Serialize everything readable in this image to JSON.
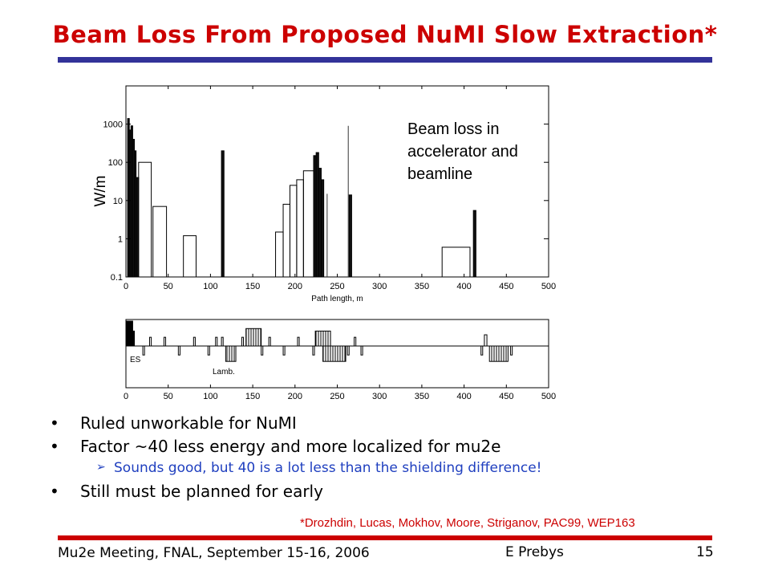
{
  "slide": {
    "title": "Beam Loss From Proposed NuMI Slow Extraction*",
    "citation": "*Drozhdin, Lucas, Mokhov, Moore, Striganov, PAC99, WEP163",
    "footer": {
      "left": "Mu2e Meeting, FNAL, September 15-16, 2006",
      "center": "E Prebys",
      "page": "15"
    },
    "bullets": [
      {
        "marker": "•",
        "text": "Ruled unworkable for NuMI"
      },
      {
        "marker": "•",
        "text": "Factor ~40 less energy and more localized for mu2e"
      },
      {
        "marker": "➢",
        "text": "Sounds good, but 40 is a lot less than the shielding difference!",
        "sub": true
      },
      {
        "marker": "•",
        "text": "Still must be planned for early"
      }
    ],
    "colors": {
      "title": "#cc0000",
      "top_rule": "#333399",
      "bottom_rule": "#cc0000",
      "sub_bullet": "#1f3fbf"
    }
  },
  "chart_data": [
    {
      "type": "bar",
      "ylabel": "W/m",
      "xlabel": "Path length, m",
      "annotation": "Beam loss in accelerator and beamline",
      "y_scale": "log",
      "xlim": [
        0,
        500
      ],
      "ylim": [
        0.1,
        10000
      ],
      "x_ticks": [
        "0",
        "50",
        "100",
        "150",
        "200",
        "250",
        "300",
        "350",
        "400",
        "450",
        "500"
      ],
      "y_ticks": [
        "0.1",
        "1",
        "10",
        "100",
        "1000"
      ],
      "bars": [
        {
          "x0": 2,
          "x1": 4,
          "value": 1400
        },
        {
          "x0": 4,
          "x1": 6,
          "value": 700
        },
        {
          "x0": 6,
          "x1": 8,
          "value": 900
        },
        {
          "x0": 8,
          "x1": 10,
          "value": 400
        },
        {
          "x0": 10,
          "x1": 12,
          "value": 200
        },
        {
          "x0": 12,
          "x1": 15,
          "value": 40
        },
        {
          "x0": 15,
          "x1": 30,
          "value": 100
        },
        {
          "x0": 32,
          "x1": 48,
          "value": 7
        },
        {
          "x0": 68,
          "x1": 83,
          "value": 1.2
        },
        {
          "x0": 113,
          "x1": 116,
          "value": 200
        },
        {
          "x0": 177,
          "x1": 186,
          "value": 1.5
        },
        {
          "x0": 186,
          "x1": 194,
          "value": 8
        },
        {
          "x0": 194,
          "x1": 202,
          "value": 25
        },
        {
          "x0": 202,
          "x1": 210,
          "value": 35
        },
        {
          "x0": 210,
          "x1": 222,
          "value": 60
        },
        {
          "x0": 222,
          "x1": 225,
          "value": 150
        },
        {
          "x0": 225,
          "x1": 228,
          "value": 180
        },
        {
          "x0": 228,
          "x1": 231,
          "value": 70
        },
        {
          "x0": 231,
          "x1": 234,
          "value": 35
        },
        {
          "x0": 264,
          "x1": 267,
          "value": 14
        },
        {
          "x0": 374,
          "x1": 407,
          "value": 0.6
        },
        {
          "x0": 411,
          "x1": 414,
          "value": 5.5
        }
      ],
      "spikes": [
        {
          "x": 263,
          "value": 900
        },
        {
          "x": 238,
          "value": 15
        }
      ]
    },
    {
      "type": "lattice",
      "xlim": [
        0,
        500
      ],
      "x_ticks": [
        "0",
        "50",
        "100",
        "150",
        "200",
        "250",
        "300",
        "350",
        "400",
        "450",
        "500"
      ],
      "labels": [
        "ES",
        "Lamb."
      ],
      "elements": [
        {
          "x0": 0,
          "x1": 8,
          "side": "up",
          "h": 1.0,
          "fill": "solid"
        },
        {
          "x0": 8,
          "x1": 10,
          "side": "up",
          "h": 0.6,
          "fill": "solid"
        },
        {
          "x0": 20,
          "x1": 22,
          "side": "down",
          "h": 0.35
        },
        {
          "x0": 28,
          "x1": 30,
          "side": "up",
          "h": 0.35
        },
        {
          "x0": 45,
          "x1": 47,
          "side": "up",
          "h": 0.35
        },
        {
          "x0": 62,
          "x1": 64,
          "side": "down",
          "h": 0.35
        },
        {
          "x0": 80,
          "x1": 82,
          "side": "up",
          "h": 0.35
        },
        {
          "x0": 97,
          "x1": 99,
          "side": "down",
          "h": 0.35
        },
        {
          "x0": 106,
          "x1": 108,
          "side": "up",
          "h": 0.35
        },
        {
          "x0": 113,
          "x1": 115,
          "side": "up",
          "h": 0.35
        },
        {
          "x0": 118,
          "x1": 130,
          "side": "down",
          "h": 0.6,
          "fill": "hatch"
        },
        {
          "x0": 137,
          "x1": 139,
          "side": "up",
          "h": 0.35
        },
        {
          "x0": 142,
          "x1": 160,
          "side": "up",
          "h": 0.7,
          "fill": "hatch"
        },
        {
          "x0": 160,
          "x1": 162,
          "side": "down",
          "h": 0.35
        },
        {
          "x0": 169,
          "x1": 171,
          "side": "up",
          "h": 0.35
        },
        {
          "x0": 186,
          "x1": 188,
          "side": "down",
          "h": 0.35
        },
        {
          "x0": 203,
          "x1": 205,
          "side": "up",
          "h": 0.35
        },
        {
          "x0": 221,
          "x1": 223,
          "side": "down",
          "h": 0.35
        },
        {
          "x0": 224,
          "x1": 242,
          "side": "up",
          "h": 0.6,
          "fill": "hatch"
        },
        {
          "x0": 233,
          "x1": 260,
          "side": "down",
          "h": 0.6,
          "fill": "hatch"
        },
        {
          "x0": 262,
          "x1": 264,
          "side": "down",
          "h": 0.35
        },
        {
          "x0": 270,
          "x1": 272,
          "side": "up",
          "h": 0.35
        },
        {
          "x0": 278,
          "x1": 280,
          "side": "down",
          "h": 0.35
        },
        {
          "x0": 420,
          "x1": 422,
          "side": "down",
          "h": 0.35
        },
        {
          "x0": 424,
          "x1": 427,
          "side": "up",
          "h": 0.45
        },
        {
          "x0": 430,
          "x1": 452,
          "side": "down",
          "h": 0.6,
          "fill": "hatch"
        },
        {
          "x0": 455,
          "x1": 457,
          "side": "down",
          "h": 0.35
        }
      ]
    }
  ]
}
